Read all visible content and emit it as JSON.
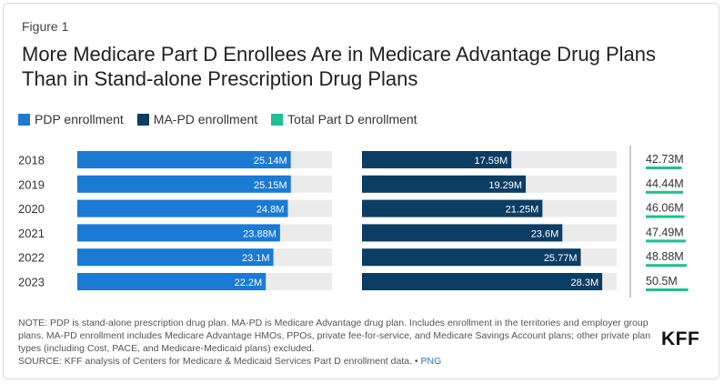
{
  "figure_label": "Figure 1",
  "title": "More Medicare Part D Enrollees Are in Medicare Advantage Drug Plans Than in Stand-alone Prescription Drug Plans",
  "legend": [
    {
      "label": "PDP enrollment",
      "color": "#1a7ad4"
    },
    {
      "label": "MA-PD enrollment",
      "color": "#0c3d63"
    },
    {
      "label": "Total Part D enrollment",
      "color": "#1fbf8f"
    }
  ],
  "colors": {
    "track": "#ebebeb",
    "pdp": "#1a7ad4",
    "mapd": "#0c3d63",
    "total": "#1fbf8f"
  },
  "chart_data": {
    "type": "bar",
    "orientation": "horizontal",
    "categories": [
      "2018",
      "2019",
      "2020",
      "2021",
      "2022",
      "2023"
    ],
    "series": [
      {
        "name": "PDP enrollment",
        "values": [
          25.14,
          25.15,
          24.8,
          23.88,
          23.1,
          22.2
        ],
        "labels": [
          "25.14M",
          "25.15M",
          "24.8M",
          "23.88M",
          "23.1M",
          "22.2M"
        ]
      },
      {
        "name": "MA-PD enrollment",
        "values": [
          17.59,
          19.29,
          21.25,
          23.6,
          25.77,
          28.3
        ],
        "labels": [
          "17.59M",
          "19.29M",
          "21.25M",
          "23.6M",
          "25.77M",
          "28.3M"
        ]
      },
      {
        "name": "Total Part D enrollment",
        "values": [
          42.73,
          44.44,
          46.06,
          47.49,
          48.88,
          50.5
        ],
        "labels": [
          "42.73M",
          "44.44M",
          "46.06M",
          "47.49M",
          "48.88M",
          "50.5M"
        ]
      }
    ],
    "grid": false,
    "legend_position": "top-left"
  },
  "notes": {
    "note": "NOTE: PDP is stand-alone prescription drug plan. MA-PD is Medicare Advantage drug plan. Includes enrollment in the territories and employer group plans. MA-PD enrollment includes Medicare Advantage HMOs, PPOs, private fee-for-service, and Medicare Savings Account plans; other private plan types (including Cost, PACE, and Medicare-Medicaid plans) excluded.",
    "source": "SOURCE: KFF analysis of Centers for Medicare & Medicaid Services Part D enrollment data. •",
    "png_link": "PNG"
  },
  "logo_text": "KFF"
}
